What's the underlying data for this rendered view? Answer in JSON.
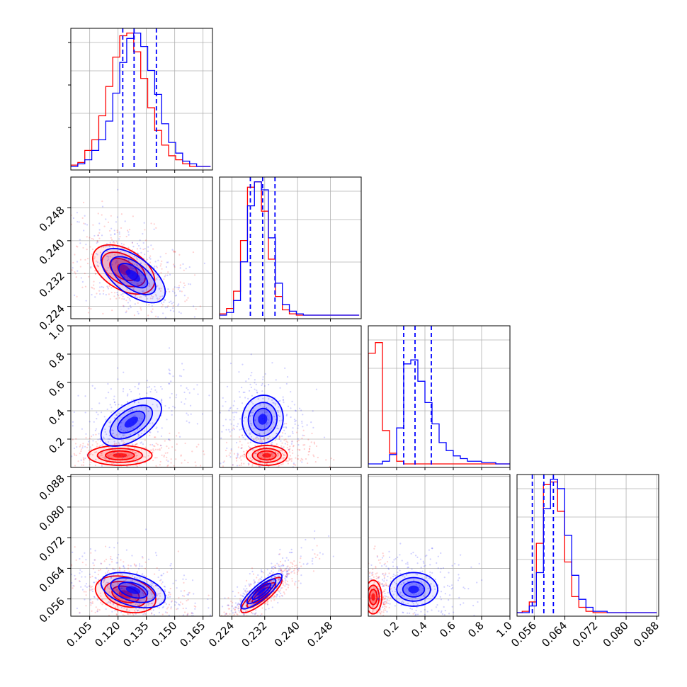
{
  "chart_data": {
    "type": "corner",
    "grid": true,
    "colors": {
      "series_a": "#0000ff",
      "series_b": "#ff0000"
    },
    "axes": [
      {
        "ticks": [
          0.105,
          0.12,
          0.135,
          0.15,
          0.165
        ],
        "tick_labels": [
          "0.105",
          "0.120",
          "0.135",
          "0.150",
          "0.165"
        ],
        "range": [
          0.095,
          0.17
        ]
      },
      {
        "ticks": [
          0.224,
          0.232,
          0.24,
          0.248
        ],
        "tick_labels": [
          "0.224",
          "0.232",
          "0.240",
          "0.248"
        ],
        "range": [
          0.221,
          0.2555
        ]
      },
      {
        "ticks": [
          0.2,
          0.4,
          0.6,
          0.8,
          1.0
        ],
        "tick_labels": [
          "0.2",
          "0.4",
          "0.6",
          "0.8",
          "1.0"
        ],
        "range": [
          0.0,
          1.0
        ]
      },
      {
        "ticks": [
          0.056,
          0.064,
          0.072,
          0.08,
          0.088
        ],
        "tick_labels": [
          "0.056",
          "0.064",
          "0.072",
          "0.080",
          "0.088"
        ],
        "range": [
          0.0515,
          0.0885
        ]
      }
    ],
    "quantiles": [
      [
        0.1225,
        0.1285,
        0.1403
      ],
      [
        0.2285,
        0.2315,
        0.2345
      ],
      [
        0.25,
        0.33,
        0.445
      ],
      [
        0.0555,
        0.0585,
        0.061
      ]
    ],
    "hist": [
      {
        "edges_start": 0.095,
        "edges_step": 0.0037,
        "series_a": [
          0,
          2,
          5,
          12,
          20,
          34,
          55,
          78,
          96,
          100,
          90,
          72,
          54,
          32,
          18,
          10,
          4,
          2,
          0,
          0
        ],
        "series_b": [
          1,
          3,
          12,
          20,
          38,
          60,
          82,
          98,
          100,
          86,
          66,
          44,
          27,
          16,
          8,
          5,
          2,
          0,
          0,
          0
        ]
      },
      {
        "edges_start": 0.221,
        "edges_step": 0.0017,
        "series_a": [
          0,
          2,
          11,
          40,
          82,
          100,
          94,
          58,
          24,
          8,
          3,
          1,
          0,
          0,
          0,
          0,
          0,
          0,
          0,
          0
        ],
        "series_b": [
          1,
          5,
          18,
          56,
          96,
          100,
          78,
          42,
          14,
          4,
          1,
          0,
          0,
          0,
          0,
          0,
          0,
          0,
          0,
          0
        ],
        "cap_a": 102,
        "cap_b": 102
      },
      {
        "edges_start": 0.0,
        "edges_step": 0.05,
        "series_a": [
          0,
          0,
          2,
          7,
          27,
          75,
          78,
          62,
          46,
          30,
          16,
          10,
          6,
          4,
          2,
          2,
          1,
          1,
          0,
          0
        ],
        "series_b": [
          83,
          91,
          25,
          8,
          2,
          0,
          0,
          0,
          0,
          0,
          0,
          0,
          0,
          0,
          0,
          0,
          0,
          0,
          0,
          0
        ],
        "top": 100
      },
      {
        "edges_start": 0.051,
        "edges_step": 0.00185,
        "series_a": [
          0,
          0,
          5,
          30,
          78,
          100,
          93,
          58,
          28,
          10,
          4,
          1,
          1,
          0,
          0,
          0,
          0,
          0,
          0,
          0
        ],
        "series_b": [
          0,
          1,
          8,
          52,
          96,
          98,
          76,
          38,
          12,
          4,
          1,
          0,
          0,
          0,
          0,
          0,
          0,
          0,
          0,
          0
        ]
      }
    ],
    "blobs": {
      "1-0": {
        "a": {
          "mx": 0.128,
          "my": 0.2315,
          "sx": 0.0085,
          "sy": 0.0033,
          "rho": -0.6
        },
        "b": {
          "mx": 0.123,
          "my": 0.233,
          "sx": 0.0082,
          "sy": 0.003,
          "rho": -0.45
        }
      },
      "2-0": {
        "a": {
          "mx": 0.127,
          "my": 0.32,
          "sx": 0.008,
          "sy": 0.085,
          "rho": 0.55
        },
        "b": {
          "mx": 0.121,
          "my": 0.085,
          "sx": 0.0085,
          "sy": 0.035,
          "rho": 0.0
        }
      },
      "2-1": {
        "a": {
          "mx": 0.2315,
          "my": 0.34,
          "sx": 0.0025,
          "sy": 0.085,
          "rho": 0.05
        },
        "b": {
          "mx": 0.2325,
          "my": 0.085,
          "sx": 0.0025,
          "sy": 0.035,
          "rho": 0.0
        }
      },
      "3-0": {
        "a": {
          "mx": 0.128,
          "my": 0.0583,
          "sx": 0.0085,
          "sy": 0.0023,
          "rho": -0.4
        },
        "b": {
          "mx": 0.124,
          "my": 0.0572,
          "sx": 0.008,
          "sy": 0.0024,
          "rho": -0.3
        }
      },
      "3-1": {
        "a": {
          "mx": 0.2312,
          "my": 0.058,
          "sx": 0.0025,
          "sy": 0.0023,
          "rho": 0.85
        },
        "b": {
          "mx": 0.2312,
          "my": 0.057,
          "sx": 0.0025,
          "sy": 0.0023,
          "rho": 0.85
        }
      },
      "3-2": {
        "a": {
          "mx": 0.32,
          "my": 0.0585,
          "sx": 0.085,
          "sy": 0.0022,
          "rho": 0.0
        },
        "b": {
          "mx": 0.035,
          "my": 0.0565,
          "sx": 0.03,
          "sy": 0.0022,
          "rho": 0.0
        }
      }
    }
  }
}
